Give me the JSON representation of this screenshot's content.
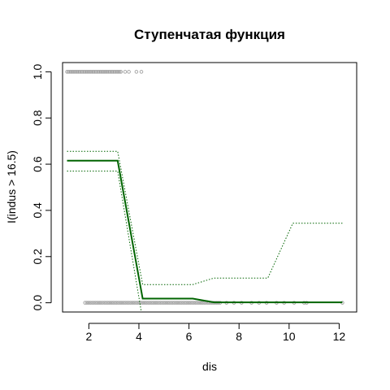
{
  "chart_data": {
    "type": "line",
    "title": "Ступенчатая функция",
    "xlabel": "dis",
    "ylabel": "I(indus > 16.5)",
    "xlim": [
      0.95,
      12.7
    ],
    "ylim": [
      -0.04,
      1.04
    ],
    "x_ticks": [
      2,
      4,
      6,
      8,
      10,
      12
    ],
    "y_ticks": [
      0.0,
      0.2,
      0.4,
      0.6,
      0.8,
      1.0
    ],
    "x_tick_labels": [
      "2",
      "4",
      "6",
      "8",
      "10",
      "12"
    ],
    "y_tick_labels": [
      "0.0",
      "0.2",
      "0.4",
      "0.6",
      "0.8",
      "1.0"
    ],
    "grid": false,
    "colors": {
      "fit": "#006400",
      "points": "#a0a0a0",
      "axis": "#000000"
    },
    "series": [
      {
        "style": "solid",
        "x": [
          1.13,
          3.15,
          4.15,
          6.15,
          7.0,
          12.13
        ],
        "y": [
          0.615,
          0.615,
          0.018,
          0.018,
          0.002,
          0.002
        ]
      },
      {
        "style": "dotted",
        "x": [
          1.13,
          3.15,
          4.15,
          6.15,
          7.0,
          9.15,
          10.15,
          12.13
        ],
        "y": [
          0.656,
          0.656,
          0.079,
          0.079,
          0.107,
          0.107,
          0.344,
          0.344
        ]
      },
      {
        "style": "dotted",
        "x": [
          1.13,
          3.15,
          4.1
        ],
        "y": [
          0.57,
          0.57,
          -0.04
        ]
      }
    ],
    "rug": {
      "y1_x_range": [
        1.13,
        3.3
      ],
      "y1_sparse_x": [
        3.45,
        3.6,
        3.9,
        4.1
      ],
      "y0_x_range": [
        1.85,
        7.3
      ],
      "y0_sparse_x": [
        7.5,
        7.8,
        8.1,
        8.5,
        8.8,
        9.1,
        9.5,
        9.8,
        10.2,
        10.6,
        10.7,
        12.13
      ]
    }
  }
}
